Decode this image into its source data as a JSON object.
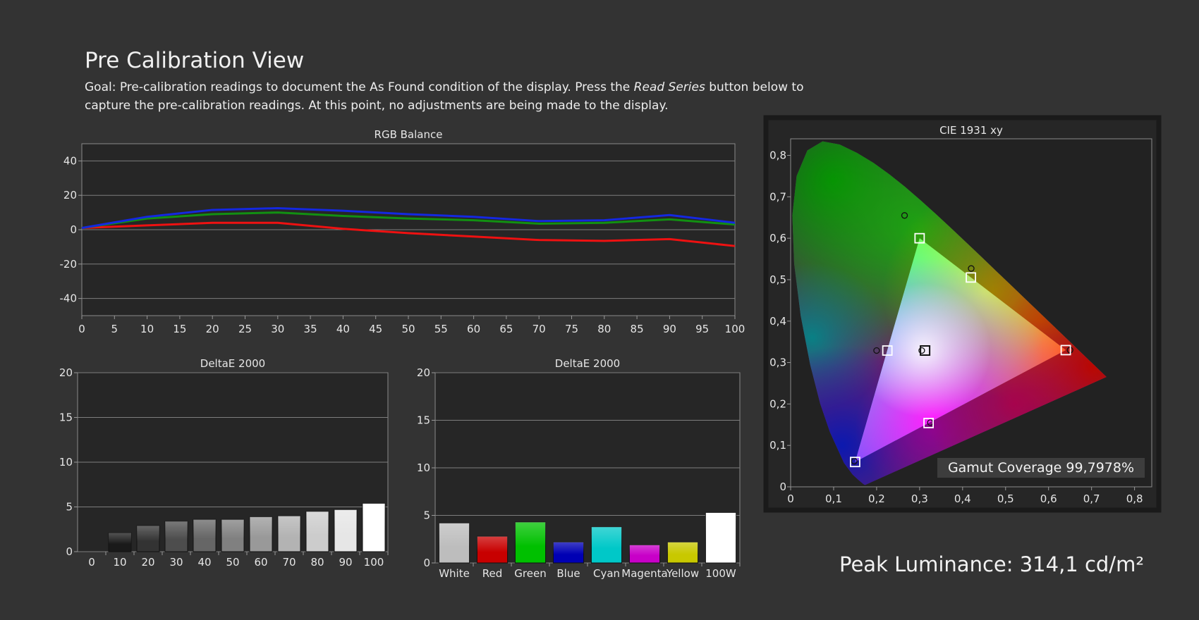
{
  "page": {
    "title": "Pre Calibration View",
    "goal_prefix": "Goal: Pre-calibration readings to document the As Found condition of the display. Press the ",
    "goal_emphasis": "Read Series",
    "goal_suffix": " button below to capture the pre-calibration readings. At this point, no adjustments are being made to the display."
  },
  "gamut_label": "Gamut Coverage 99,7978%",
  "peak_label": "Peak Luminance: 314,1 cd/m²",
  "colors": {
    "background": "#333333",
    "plot_bg": "#262626",
    "gridline": "#7d7d7d",
    "text": "#e6e6e6"
  },
  "chart_data": [
    {
      "id": "rgb_balance",
      "type": "line",
      "title": "RGB Balance",
      "x": [
        0,
        10,
        20,
        30,
        40,
        50,
        60,
        70,
        80,
        90,
        100
      ],
      "xticks": [
        0,
        5,
        10,
        15,
        20,
        25,
        30,
        35,
        40,
        45,
        50,
        55,
        60,
        65,
        70,
        75,
        80,
        85,
        90,
        95,
        100
      ],
      "yticks": [
        40,
        20,
        0,
        -20,
        -40
      ],
      "xlim": [
        0,
        100
      ],
      "ylim": [
        -50,
        50
      ],
      "grid": true,
      "series": [
        {
          "color": "#ee1111",
          "values": [
            1,
            2.5,
            4,
            4,
            0.5,
            -2,
            -4,
            -6,
            -6.5,
            -5.5,
            -9.5
          ]
        },
        {
          "color": "#129012",
          "values": [
            1,
            6.5,
            9,
            10,
            8,
            6.5,
            5.5,
            3.5,
            4,
            6,
            3
          ]
        },
        {
          "color": "#1428e0",
          "values": [
            1,
            7.5,
            11.5,
            12.5,
            11,
            9,
            7.5,
            5,
            5.5,
            8.5,
            4
          ]
        }
      ]
    },
    {
      "id": "deltae_grayscale",
      "type": "bar",
      "title": "DeltaE 2000",
      "categories": [
        "0",
        "10",
        "20",
        "30",
        "40",
        "50",
        "60",
        "70",
        "80",
        "90",
        "100"
      ],
      "values": [
        0,
        2.1,
        2.9,
        3.4,
        3.6,
        3.6,
        3.9,
        4.0,
        4.5,
        4.7,
        5.4
      ],
      "colors": [
        "#000000",
        "#1a1a1a",
        "#333333",
        "#4d4d4d",
        "#666666",
        "#808080",
        "#999999",
        "#b3b3b3",
        "#cccccc",
        "#e6e6e6",
        "#ffffff"
      ],
      "yticks": [
        20,
        15,
        10,
        5,
        0
      ],
      "ylim": [
        0,
        20
      ],
      "grid": true
    },
    {
      "id": "deltae_colors",
      "type": "bar",
      "title": "DeltaE 2000",
      "categories": [
        "White",
        "Red",
        "Green",
        "Blue",
        "Cyan",
        "Magenta",
        "Yellow",
        "100W"
      ],
      "values": [
        4.2,
        2.8,
        4.3,
        2.2,
        3.8,
        1.9,
        2.2,
        5.3
      ],
      "colors": [
        "#bdbdbd",
        "#c80000",
        "#00c000",
        "#0000b4",
        "#00c8c8",
        "#c800c8",
        "#c8c800",
        "#ffffff"
      ],
      "yticks": [
        20,
        15,
        10,
        5,
        0
      ],
      "ylim": [
        0,
        20
      ],
      "grid": true
    },
    {
      "id": "cie_1931",
      "type": "scatter",
      "title": "CIE 1931 xy",
      "xticks": [
        "0",
        "0,1",
        "0,2",
        "0,3",
        "0,4",
        "0,5",
        "0,6",
        "0,7",
        "0,8"
      ],
      "yticks": [
        "0,8",
        "0,7",
        "0,6",
        "0,5",
        "0,4",
        "0,3",
        "0,2",
        "0,1",
        "0"
      ],
      "xlim": [
        0,
        0.84
      ],
      "ylim": [
        0,
        0.84
      ],
      "target_gamut": [
        [
          0.64,
          0.33
        ],
        [
          0.3,
          0.6
        ],
        [
          0.15,
          0.06
        ]
      ],
      "targets": [
        {
          "x": 0.64,
          "y": 0.33
        },
        {
          "x": 0.3,
          "y": 0.6
        },
        {
          "x": 0.15,
          "y": 0.06
        },
        {
          "x": 0.3127,
          "y": 0.329
        },
        {
          "x": 0.225,
          "y": 0.329
        },
        {
          "x": 0.3209,
          "y": 0.154
        },
        {
          "x": 0.4193,
          "y": 0.5053
        }
      ],
      "measured": [
        {
          "x": 0.65,
          "y": 0.33
        },
        {
          "x": 0.265,
          "y": 0.655
        },
        {
          "x": 0.148,
          "y": 0.062
        },
        {
          "x": 0.305,
          "y": 0.329
        },
        {
          "x": 0.2,
          "y": 0.329
        },
        {
          "x": 0.325,
          "y": 0.155
        },
        {
          "x": 0.42,
          "y": 0.527
        }
      ]
    }
  ]
}
